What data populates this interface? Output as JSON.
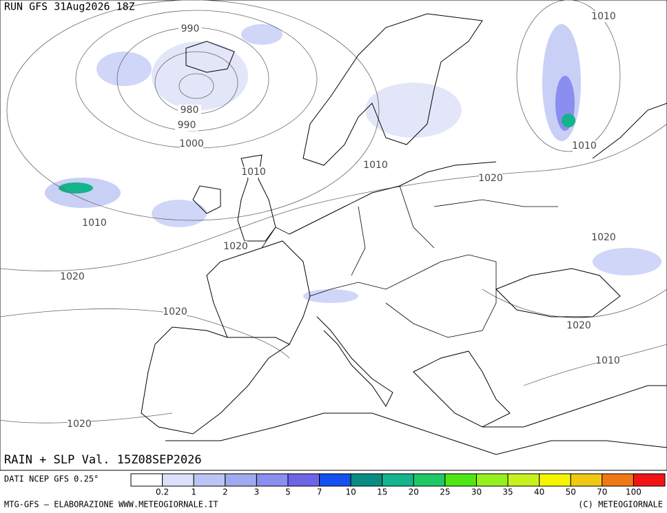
{
  "header": {
    "run": "RUN GFS 31Aug2026 18Z"
  },
  "map": {
    "title": "RAIN + SLP Val. 15Z08SEP2026",
    "isobar_labels": [
      "990",
      "980",
      "990",
      "1000",
      "1010",
      "1010",
      "1020",
      "1020",
      "1020",
      "1020",
      "1010",
      "1020",
      "1010",
      "1010",
      "1020",
      "1020",
      "1010"
    ]
  },
  "legend": {
    "source": "DATI NCEP GFS 0.25°",
    "colors": [
      "#ffffff",
      "#dce0f8",
      "#bcc4f4",
      "#a0aaf0",
      "#8a8eee",
      "#6e64e6",
      "#1450f0",
      "#0a8c82",
      "#14b48c",
      "#1ec864",
      "#50e614",
      "#96f01e",
      "#c8f01e",
      "#f5f500",
      "#f0c814",
      "#f07814",
      "#f01414"
    ],
    "labels": [
      0.2,
      1,
      2,
      3,
      5,
      7,
      10,
      15,
      20,
      25,
      30,
      35,
      40,
      50,
      70,
      100
    ]
  },
  "footer": {
    "left": "MTG-GFS – ELABORAZIONE WWW.METEOGIORNALE.IT",
    "right": "(C) METEOGIORNALE"
  }
}
